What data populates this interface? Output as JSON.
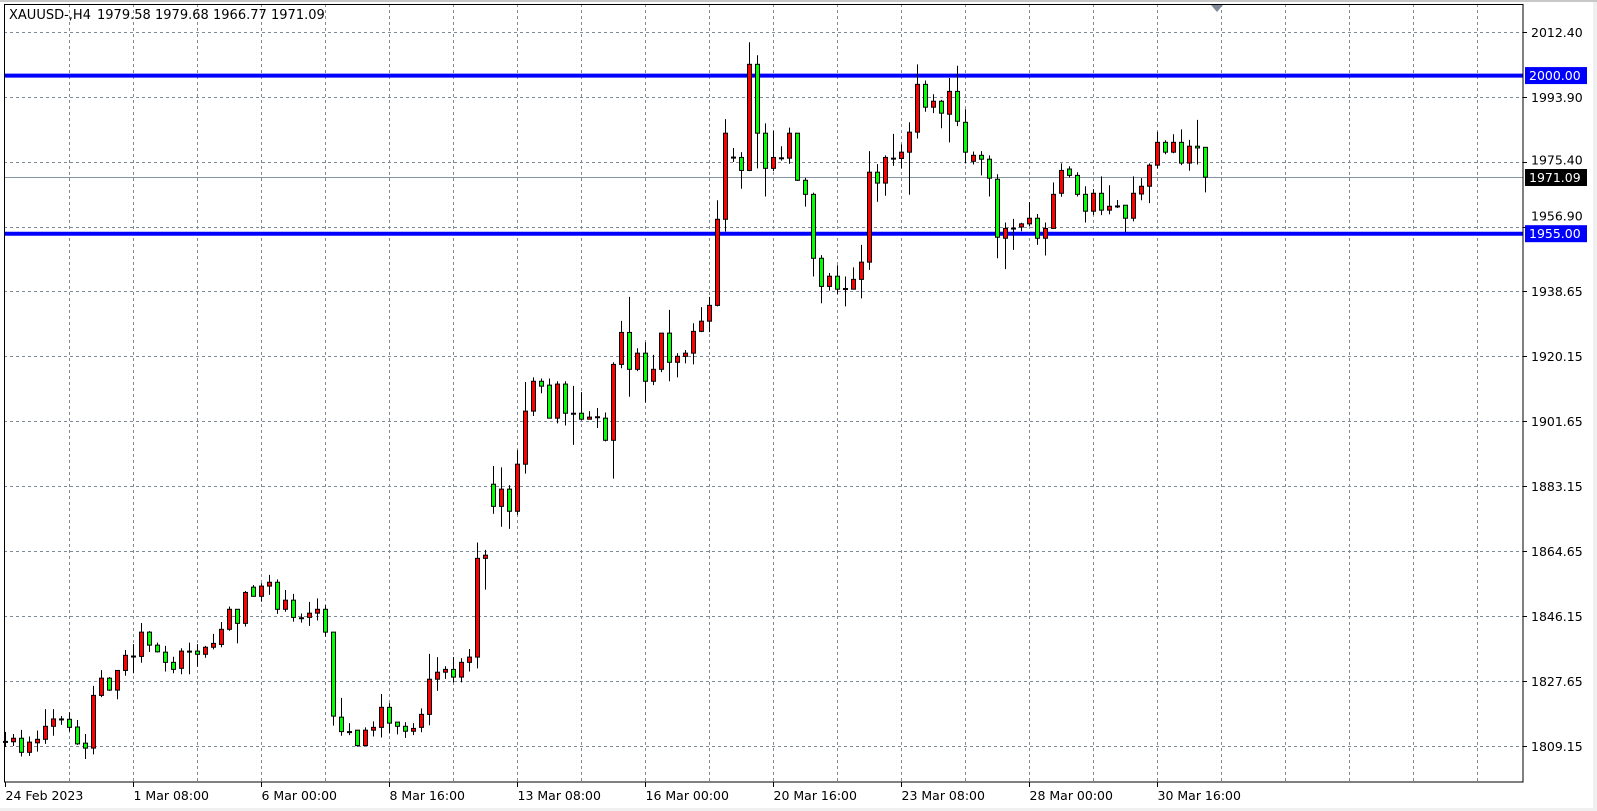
{
  "header": {
    "symbol_label": "XAUUSD-,H4",
    "open": "1979.58",
    "high": "1979.68",
    "low": "1966.77",
    "close": "1971.09"
  },
  "colors": {
    "bull_candle": "#ff0000",
    "bear_candle": "#00ff00",
    "candle_outline": "#000000",
    "grid": "#7f8a99",
    "level_line": "#0000ff",
    "current_price_line": "#8494a4",
    "current_price_box": "#000000"
  },
  "chart_data": {
    "type": "candlestick",
    "symbol": "XAUUSD-",
    "timeframe": "H4",
    "grid": true,
    "ylim": [
      1798.95,
      2020.37
    ],
    "y_ticks": [
      "2012.40",
      "1993.90",
      "1975.40",
      "1956.90",
      "1938.65",
      "1920.15",
      "1901.65",
      "1883.15",
      "1864.65",
      "1846.15",
      "1827.65",
      "1809.15"
    ],
    "x_labels": [
      {
        "bar": 0,
        "text": "24 Feb 2023"
      },
      {
        "bar": 16,
        "text": "1 Mar 08:00"
      },
      {
        "bar": 32,
        "text": "6 Mar 00:00"
      },
      {
        "bar": 48,
        "text": "8 Mar 16:00"
      },
      {
        "bar": 64,
        "text": "13 Mar 08:00"
      },
      {
        "bar": 80,
        "text": "16 Mar 00:00"
      },
      {
        "bar": 96,
        "text": "20 Mar 16:00"
      },
      {
        "bar": 112,
        "text": "23 Mar 08:00"
      },
      {
        "bar": 128,
        "text": "28 Mar 00:00"
      },
      {
        "bar": 144,
        "text": "30 Mar 16:00"
      }
    ],
    "horizontal_levels": [
      {
        "price": 2000.0,
        "label": "2000.00"
      },
      {
        "price": 1955.0,
        "label": "1955.00"
      }
    ],
    "current_price": {
      "price": 1971.09,
      "label": "1971.09"
    },
    "ohlc_fields": [
      "open",
      "high",
      "low",
      "close"
    ],
    "ohlc": [
      [
        1810.3,
        1813.2,
        1808.9,
        1810.5
      ],
      [
        1810.4,
        1812.6,
        1809.2,
        1811.4
      ],
      [
        1811.4,
        1813.8,
        1806.2,
        1807.4
      ],
      [
        1807.4,
        1811.9,
        1806.4,
        1810.3
      ],
      [
        1810.1,
        1813.6,
        1807.6,
        1811.1
      ],
      [
        1811.1,
        1819.7,
        1809.8,
        1814.8
      ],
      [
        1814.8,
        1819.7,
        1812.1,
        1816.9
      ],
      [
        1816.9,
        1817.7,
        1815.2,
        1816.9
      ],
      [
        1816.8,
        1818.8,
        1813.3,
        1814.5
      ],
      [
        1814.6,
        1816.6,
        1809.5,
        1809.8
      ],
      [
        1810.0,
        1812.6,
        1805.5,
        1808.6
      ],
      [
        1808.6,
        1826.3,
        1806.8,
        1823.6
      ],
      [
        1823.6,
        1830.8,
        1823.1,
        1828.5
      ],
      [
        1828.5,
        1828.8,
        1824.9,
        1825.1
      ],
      [
        1825.1,
        1830.7,
        1822.5,
        1830.7
      ],
      [
        1830.7,
        1836.5,
        1829.2,
        1835.0
      ],
      [
        1834.8,
        1838.2,
        1829.9,
        1834.8
      ],
      [
        1834.7,
        1844.2,
        1832.9,
        1841.6
      ],
      [
        1841.6,
        1841.9,
        1836.0,
        1837.9
      ],
      [
        1837.9,
        1838.6,
        1835.8,
        1836.0
      ],
      [
        1835.9,
        1837.7,
        1830.4,
        1833.0
      ],
      [
        1833.0,
        1834.6,
        1829.9,
        1831.0
      ],
      [
        1831.3,
        1837.0,
        1829.6,
        1836.2
      ],
      [
        1836.2,
        1838.6,
        1829.6,
        1836.2
      ],
      [
        1836.2,
        1838.2,
        1831.8,
        1835.3
      ],
      [
        1835.3,
        1837.7,
        1834.3,
        1837.3
      ],
      [
        1837.3,
        1841.1,
        1836.7,
        1838.4
      ],
      [
        1838.1,
        1844.5,
        1837.3,
        1842.4
      ],
      [
        1842.4,
        1848.9,
        1842.0,
        1848.1
      ],
      [
        1848.1,
        1848.1,
        1838.4,
        1844.1
      ],
      [
        1844.1,
        1853.3,
        1843.2,
        1852.9
      ],
      [
        1854.4,
        1855.0,
        1851.7,
        1851.8
      ],
      [
        1851.8,
        1855.5,
        1850.3,
        1854.7
      ],
      [
        1854.7,
        1857.9,
        1852.2,
        1855.8
      ],
      [
        1855.8,
        1856.6,
        1846.8,
        1848.1
      ],
      [
        1848.1,
        1853.6,
        1847.4,
        1850.7
      ],
      [
        1850.7,
        1852.5,
        1844.6,
        1845.8
      ],
      [
        1845.7,
        1846.9,
        1844.3,
        1845.7
      ],
      [
        1845.8,
        1850.2,
        1843.4,
        1847.0
      ],
      [
        1847.0,
        1851.2,
        1844.9,
        1848.1
      ],
      [
        1848.1,
        1849.3,
        1840.3,
        1841.6
      ],
      [
        1841.6,
        1841.6,
        1815.0,
        1817.7
      ],
      [
        1817.4,
        1822.9,
        1812.1,
        1813.3
      ],
      [
        1813.3,
        1815.7,
        1812.3,
        1813.3
      ],
      [
        1813.7,
        1813.7,
        1809.0,
        1809.3
      ],
      [
        1809.3,
        1814.5,
        1809.3,
        1813.7
      ],
      [
        1813.7,
        1816.2,
        1811.9,
        1814.5
      ],
      [
        1814.5,
        1824.0,
        1811.6,
        1820.2
      ],
      [
        1820.2,
        1821.4,
        1812.8,
        1815.7
      ],
      [
        1816.0,
        1816.0,
        1812.5,
        1814.8
      ],
      [
        1814.8,
        1816.0,
        1811.5,
        1813.4
      ],
      [
        1813.4,
        1815.7,
        1812.3,
        1814.2
      ],
      [
        1814.5,
        1819.9,
        1813.1,
        1818.2
      ],
      [
        1818.2,
        1835.4,
        1815.1,
        1828.2
      ],
      [
        1828.2,
        1834.5,
        1824.9,
        1830.2
      ],
      [
        1830.2,
        1831.9,
        1828.3,
        1831.0
      ],
      [
        1831.0,
        1834.5,
        1827.3,
        1828.8
      ],
      [
        1828.8,
        1834.2,
        1827.3,
        1833.0
      ],
      [
        1833.0,
        1836.8,
        1830.4,
        1834.5
      ],
      [
        1834.5,
        1867.1,
        1831.3,
        1862.6
      ],
      [
        1862.6,
        1865.0,
        1853.7,
        1863.5
      ],
      [
        1883.7,
        1888.9,
        1875.3,
        1877.4
      ],
      [
        1877.4,
        1888.5,
        1871.6,
        1882.3
      ],
      [
        1882.3,
        1883.4,
        1871.0,
        1876.0
      ],
      [
        1876.0,
        1893.4,
        1875.0,
        1889.4
      ],
      [
        1889.4,
        1912.8,
        1886.7,
        1904.5
      ],
      [
        1904.5,
        1914.1,
        1903.1,
        1913.0
      ],
      [
        1913.0,
        1913.8,
        1909.6,
        1911.6
      ],
      [
        1911.9,
        1913.8,
        1902.5,
        1902.5
      ],
      [
        1902.5,
        1913.0,
        1901.0,
        1912.2
      ],
      [
        1912.2,
        1913.0,
        1900.4,
        1903.9
      ],
      [
        1903.9,
        1911.7,
        1894.9,
        1903.9
      ],
      [
        1903.9,
        1909.9,
        1901.9,
        1902.2
      ],
      [
        1902.2,
        1904.5,
        1902.2,
        1902.8
      ],
      [
        1902.9,
        1905.4,
        1899.7,
        1902.7
      ],
      [
        1902.5,
        1904.1,
        1895.9,
        1896.2
      ],
      [
        1896.2,
        1918.4,
        1885.3,
        1917.8
      ],
      [
        1917.8,
        1930.2,
        1916.7,
        1926.9
      ],
      [
        1926.9,
        1937.0,
        1908.6,
        1916.4
      ],
      [
        1916.4,
        1922.4,
        1915.9,
        1921.0
      ],
      [
        1921.0,
        1924.1,
        1907.0,
        1913.0
      ],
      [
        1913.0,
        1920.5,
        1911.9,
        1916.4
      ],
      [
        1916.4,
        1926.7,
        1915.6,
        1926.7
      ],
      [
        1926.7,
        1933.3,
        1913.0,
        1918.4
      ],
      [
        1918.4,
        1921.0,
        1914.1,
        1920.1
      ],
      [
        1920.1,
        1921.9,
        1918.1,
        1921.0
      ],
      [
        1921.0,
        1929.5,
        1917.8,
        1927.2
      ],
      [
        1927.2,
        1934.1,
        1927.0,
        1930.1
      ],
      [
        1930.1,
        1937.0,
        1927.0,
        1934.6
      ],
      [
        1934.6,
        1964.5,
        1934.3,
        1959.1
      ],
      [
        1959.1,
        1987.6,
        1955.6,
        1983.6
      ],
      [
        1976.8,
        1979.4,
        1975.4,
        1976.5
      ],
      [
        1976.7,
        1978.2,
        1967.8,
        1973.0
      ],
      [
        1973.0,
        2009.5,
        1972.8,
        2003.2
      ],
      [
        2003.2,
        2005.8,
        1973.6,
        1983.6
      ],
      [
        1983.6,
        1986.4,
        1965.6,
        1973.6
      ],
      [
        1973.6,
        1984.3,
        1972.8,
        1976.7
      ],
      [
        1976.5,
        1979.9,
        1975.8,
        1976.6
      ],
      [
        1976.5,
        1985.2,
        1974.9,
        1983.6
      ],
      [
        1983.6,
        1983.6,
        1970.0,
        1970.2
      ],
      [
        1970.2,
        1970.9,
        1962.7,
        1966.2
      ],
      [
        1966.2,
        1966.7,
        1942.8,
        1948.0
      ],
      [
        1948.0,
        1948.9,
        1935.2,
        1940.0
      ],
      [
        1940.0,
        1943.8,
        1938.8,
        1942.9
      ],
      [
        1942.9,
        1946.0,
        1937.8,
        1939.2
      ],
      [
        1939.4,
        1942.8,
        1934.3,
        1939.3
      ],
      [
        1939.2,
        1945.4,
        1939.2,
        1942.0
      ],
      [
        1942.0,
        1951.8,
        1936.6,
        1946.9
      ],
      [
        1946.9,
        1978.5,
        1944.7,
        1972.5
      ],
      [
        1972.5,
        1974.8,
        1964.1,
        1969.4
      ],
      [
        1969.4,
        1977.3,
        1965.8,
        1976.7
      ],
      [
        1976.4,
        1983.4,
        1974.3,
        1976.5
      ],
      [
        1976.4,
        1980.4,
        1973.6,
        1978.2
      ],
      [
        1978.2,
        1986.7,
        1966.1,
        1983.9
      ],
      [
        1983.9,
        2003.2,
        1982.1,
        1997.5
      ],
      [
        1997.5,
        1998.6,
        1989.7,
        1991.0
      ],
      [
        1991.0,
        1994.7,
        1989.3,
        1992.7
      ],
      [
        1992.7,
        1993.1,
        1985.0,
        1989.3
      ],
      [
        1989.0,
        1999.3,
        1981.0,
        1995.5
      ],
      [
        1995.5,
        2002.8,
        1985.6,
        1987.0
      ],
      [
        1986.7,
        1990.4,
        1975.0,
        1978.2
      ],
      [
        1975.6,
        1978.4,
        1974.7,
        1977.3
      ],
      [
        1977.3,
        1978.5,
        1971.6,
        1976.2
      ],
      [
        1976.2,
        1977.3,
        1965.6,
        1970.8
      ],
      [
        1970.5,
        1971.9,
        1948.0,
        1954.0
      ],
      [
        1953.7,
        1958.2,
        1944.9,
        1956.5
      ],
      [
        1956.5,
        1959.2,
        1950.4,
        1956.6
      ],
      [
        1956.9,
        1958.1,
        1955.7,
        1957.8
      ],
      [
        1957.8,
        1964.0,
        1957.2,
        1959.4
      ],
      [
        1959.4,
        1960.6,
        1951.8,
        1953.7
      ],
      [
        1953.7,
        1958.2,
        1948.8,
        1956.5
      ],
      [
        1956.5,
        1969.6,
        1956.5,
        1966.2
      ],
      [
        1966.5,
        1975.0,
        1965.5,
        1973.0
      ],
      [
        1973.4,
        1974.2,
        1971.0,
        1971.6
      ],
      [
        1971.6,
        1972.5,
        1965.6,
        1966.2
      ],
      [
        1966.2,
        1968.5,
        1958.2,
        1961.4
      ],
      [
        1961.4,
        1967.7,
        1960.3,
        1966.5
      ],
      [
        1966.5,
        1971.3,
        1960.3,
        1961.7
      ],
      [
        1961.7,
        1968.8,
        1960.5,
        1962.8
      ],
      [
        1962.9,
        1964.6,
        1962.3,
        1962.9
      ],
      [
        1963.1,
        1963.1,
        1955.4,
        1959.4
      ],
      [
        1959.4,
        1971.3,
        1958.5,
        1966.5
      ],
      [
        1966.3,
        1970.8,
        1964.5,
        1968.5
      ],
      [
        1968.5,
        1975.0,
        1963.7,
        1974.5
      ],
      [
        1974.5,
        1984.0,
        1973.6,
        1981.0
      ],
      [
        1981.0,
        1981.6,
        1977.6,
        1978.2
      ],
      [
        1978.2,
        1983.3,
        1977.9,
        1981.0
      ],
      [
        1981.0,
        1984.7,
        1974.5,
        1975.1
      ],
      [
        1975.1,
        1981.7,
        1972.9,
        1979.9
      ],
      [
        1979.9,
        1987.4,
        1974.7,
        1979.4
      ],
      [
        1979.58,
        1979.68,
        1966.77,
        1971.09
      ]
    ]
  }
}
